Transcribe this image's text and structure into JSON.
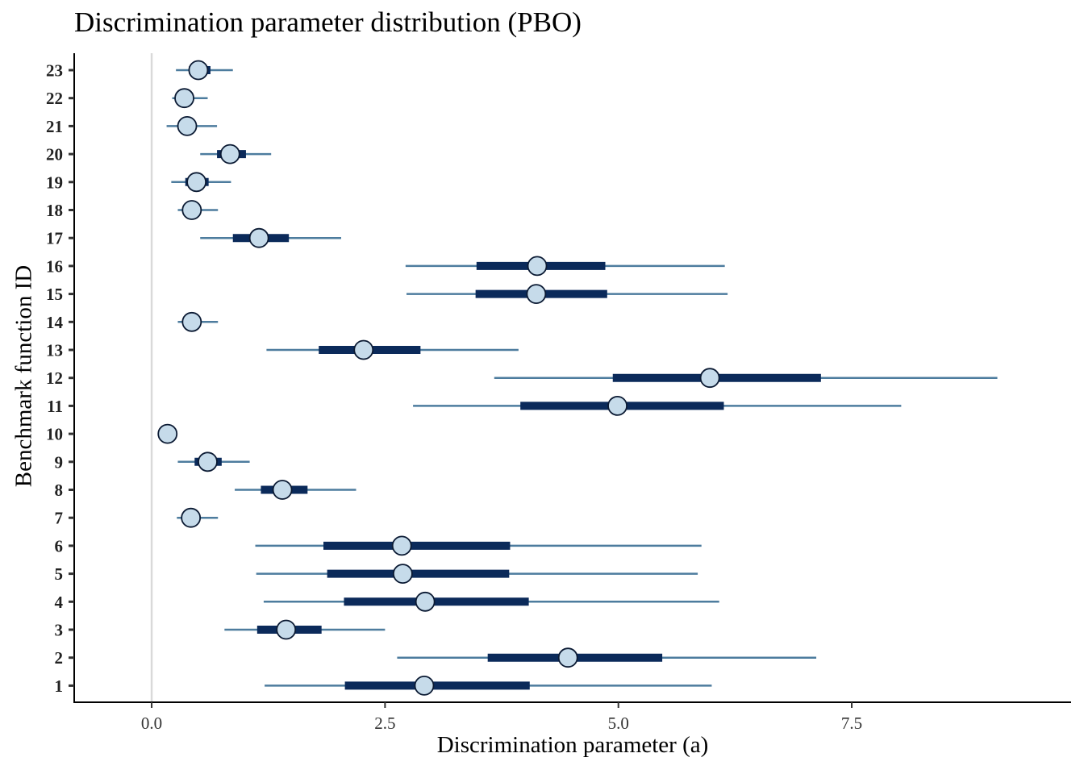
{
  "chart_data": {
    "type": "interval",
    "title": "Discrimination parameter distribution (PBO)",
    "xlabel": "Discrimination parameter (a)",
    "ylabel": "Benchmark function ID",
    "xlim": [
      -0.83,
      9.85
    ],
    "x_ticks": [
      "0.0",
      "2.5",
      "5.0",
      "7.5"
    ],
    "x_tick_values": [
      0,
      2.5,
      5,
      7.5
    ],
    "reference_line_x": 0,
    "colors": {
      "outer_interval": "#4d7c9e",
      "inner_interval": "#0b2a5a",
      "point_fill": "#c6dbea",
      "point_stroke": "#0b1a33",
      "reference_line": "#d9d9d9"
    },
    "rows": [
      {
        "id": "1",
        "median": 2.92,
        "inner": [
          2.07,
          4.05
        ],
        "outer": [
          1.21,
          6.0
        ]
      },
      {
        "id": "2",
        "median": 4.46,
        "inner": [
          3.6,
          5.47
        ],
        "outer": [
          2.63,
          7.12
        ]
      },
      {
        "id": "3",
        "median": 1.44,
        "inner": [
          1.13,
          1.82
        ],
        "outer": [
          0.78,
          2.5
        ]
      },
      {
        "id": "4",
        "median": 2.93,
        "inner": [
          2.06,
          4.04
        ],
        "outer": [
          1.2,
          6.08
        ]
      },
      {
        "id": "5",
        "median": 2.69,
        "inner": [
          1.88,
          3.83
        ],
        "outer": [
          1.12,
          5.85
        ]
      },
      {
        "id": "6",
        "median": 2.68,
        "inner": [
          1.84,
          3.84
        ],
        "outer": [
          1.11,
          5.89
        ]
      },
      {
        "id": "7",
        "median": 0.42,
        "inner": [
          0.35,
          0.5
        ],
        "outer": [
          0.27,
          0.71
        ]
      },
      {
        "id": "8",
        "median": 1.4,
        "inner": [
          1.17,
          1.67
        ],
        "outer": [
          0.89,
          2.19
        ]
      },
      {
        "id": "9",
        "median": 0.6,
        "inner": [
          0.46,
          0.75
        ],
        "outer": [
          0.28,
          1.05
        ]
      },
      {
        "id": "10",
        "median": 0.17,
        "inner": [
          0.13,
          0.21
        ],
        "outer": [
          0.09,
          0.25
        ]
      },
      {
        "id": "11",
        "median": 4.99,
        "inner": [
          3.95,
          6.13
        ],
        "outer": [
          2.8,
          8.03
        ]
      },
      {
        "id": "12",
        "median": 5.98,
        "inner": [
          4.94,
          7.17
        ],
        "outer": [
          3.67,
          9.06
        ]
      },
      {
        "id": "13",
        "median": 2.27,
        "inner": [
          1.79,
          2.88
        ],
        "outer": [
          1.23,
          3.93
        ]
      },
      {
        "id": "14",
        "median": 0.43,
        "inner": [
          0.36,
          0.5
        ],
        "outer": [
          0.28,
          0.71
        ]
      },
      {
        "id": "15",
        "median": 4.12,
        "inner": [
          3.47,
          4.88
        ],
        "outer": [
          2.73,
          6.17
        ]
      },
      {
        "id": "16",
        "median": 4.13,
        "inner": [
          3.48,
          4.86
        ],
        "outer": [
          2.72,
          6.14
        ]
      },
      {
        "id": "17",
        "median": 1.15,
        "inner": [
          0.87,
          1.47
        ],
        "outer": [
          0.52,
          2.03
        ]
      },
      {
        "id": "18",
        "median": 0.43,
        "inner": [
          0.37,
          0.5
        ],
        "outer": [
          0.28,
          0.71
        ]
      },
      {
        "id": "19",
        "median": 0.48,
        "inner": [
          0.36,
          0.61
        ],
        "outer": [
          0.21,
          0.85
        ]
      },
      {
        "id": "20",
        "median": 0.84,
        "inner": [
          0.7,
          1.01
        ],
        "outer": [
          0.52,
          1.28
        ]
      },
      {
        "id": "21",
        "median": 0.38,
        "inner": [
          0.32,
          0.46
        ],
        "outer": [
          0.16,
          0.7
        ]
      },
      {
        "id": "22",
        "median": 0.35,
        "inner": [
          0.3,
          0.41
        ],
        "outer": [
          0.22,
          0.6
        ]
      },
      {
        "id": "23",
        "median": 0.5,
        "inner": [
          0.4,
          0.63
        ],
        "outer": [
          0.26,
          0.87
        ]
      }
    ]
  }
}
